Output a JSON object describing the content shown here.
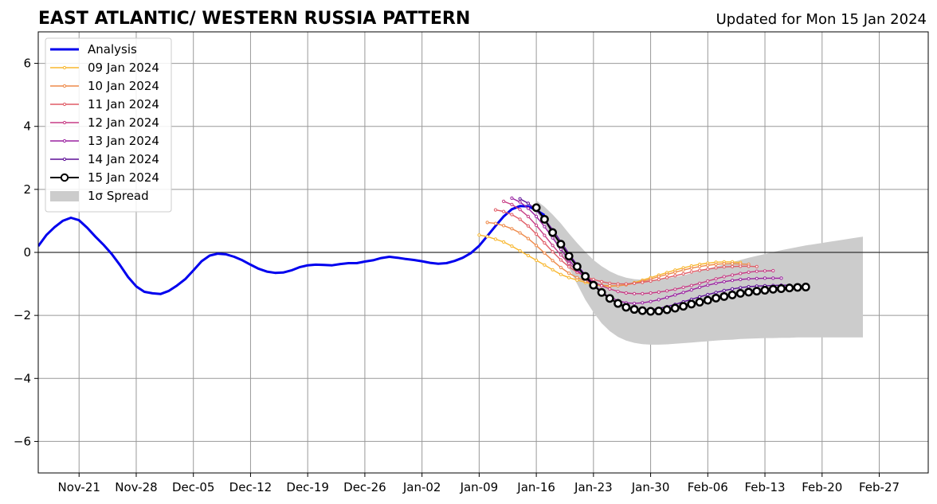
{
  "chart_data": {
    "type": "line",
    "title": "EAST ATLANTIC/ WESTERN RUSSIA PATTERN",
    "subtitle": "Updated for Mon 15 Jan 2024",
    "x_ticks": [
      "Nov-21",
      "Nov-28",
      "Dec-05",
      "Dec-12",
      "Dec-19",
      "Dec-26",
      "Jan-02",
      "Jan-09",
      "Jan-16",
      "Jan-23",
      "Jan-30",
      "Feb-06",
      "Feb-13",
      "Feb-20",
      "Feb-27"
    ],
    "xlim": [
      "2023-11-16",
      "2024-03-04"
    ],
    "ylim": [
      -7,
      7
    ],
    "y_ticks": [
      -6,
      -4,
      -2,
      0,
      2,
      4,
      6
    ],
    "y_tick_labels": [
      "−6",
      "−4",
      "−2",
      "0",
      "2",
      "4",
      "6"
    ],
    "grid": true,
    "legend_position": "top-left",
    "analysis": {
      "name": "Analysis",
      "color": "#0000ee",
      "start_date": "2023-11-16",
      "values": [
        0.2,
        0.55,
        0.8,
        1.0,
        1.1,
        1.02,
        0.78,
        0.5,
        0.24,
        -0.05,
        -0.4,
        -0.78,
        -1.08,
        -1.25,
        -1.3,
        -1.32,
        -1.22,
        -1.05,
        -0.85,
        -0.57,
        -0.28,
        -0.1,
        -0.04,
        -0.06,
        -0.14,
        -0.25,
        -0.39,
        -0.52,
        -0.61,
        -0.65,
        -0.64,
        -0.57,
        -0.47,
        -0.41,
        -0.39,
        -0.4,
        -0.41,
        -0.37,
        -0.34,
        -0.34,
        -0.29,
        -0.25,
        -0.18,
        -0.14,
        -0.17,
        -0.21,
        -0.24,
        -0.28,
        -0.33,
        -0.36,
        -0.34,
        -0.27,
        -0.17,
        -0.02,
        0.21,
        0.52,
        0.84,
        1.14,
        1.37,
        1.47,
        1.46,
        1.34,
        1.18
      ]
    },
    "forecasts": [
      {
        "name": "09 Jan 2024",
        "color": "#f8b72f",
        "start_date": "2024-01-09",
        "values": [
          0.55,
          0.5,
          0.42,
          0.33,
          0.2,
          0.05,
          -0.1,
          -0.25,
          -0.4,
          -0.55,
          -0.7,
          -0.8,
          -0.88,
          -0.95,
          -1.02,
          -1.06,
          -1.08,
          -1.06,
          -1.02,
          -0.96,
          -0.88,
          -0.8,
          -0.72,
          -0.64,
          -0.56,
          -0.49,
          -0.43,
          -0.38,
          -0.34,
          -0.31,
          -0.3,
          -0.3,
          -0.32
        ]
      },
      {
        "name": "10 Jan 2024",
        "color": "#ee8a4a",
        "start_date": "2024-01-10",
        "values": [
          0.95,
          0.92,
          0.85,
          0.75,
          0.62,
          0.44,
          0.22,
          -0.02,
          -0.26,
          -0.48,
          -0.66,
          -0.8,
          -0.91,
          -0.99,
          -1.04,
          -1.06,
          -1.06,
          -1.03,
          -0.98,
          -0.92,
          -0.85,
          -0.77,
          -0.7,
          -0.63,
          -0.56,
          -0.5,
          -0.45,
          -0.41,
          -0.38,
          -0.36,
          -0.36,
          -0.37,
          -0.38
        ]
      },
      {
        "name": "11 Jan 2024",
        "color": "#e05c66",
        "start_date": "2024-01-11",
        "values": [
          1.35,
          1.3,
          1.2,
          1.05,
          0.84,
          0.58,
          0.3,
          0.02,
          -0.24,
          -0.46,
          -0.63,
          -0.76,
          -0.86,
          -0.93,
          -0.98,
          -1.0,
          -1.0,
          -0.98,
          -0.95,
          -0.91,
          -0.86,
          -0.8,
          -0.74,
          -0.68,
          -0.62,
          -0.57,
          -0.53,
          -0.49,
          -0.46,
          -0.45,
          -0.44,
          -0.44,
          -0.45
        ]
      },
      {
        "name": "12 Jan 2024",
        "color": "#c73c85",
        "start_date": "2024-01-12",
        "values": [
          1.62,
          1.52,
          1.36,
          1.14,
          0.86,
          0.54,
          0.22,
          -0.08,
          -0.35,
          -0.58,
          -0.77,
          -0.93,
          -1.06,
          -1.16,
          -1.24,
          -1.29,
          -1.31,
          -1.31,
          -1.29,
          -1.26,
          -1.22,
          -1.17,
          -1.11,
          -1.05,
          -0.98,
          -0.91,
          -0.84,
          -0.77,
          -0.72,
          -0.67,
          -0.63,
          -0.6,
          -0.59,
          -0.58
        ]
      },
      {
        "name": "13 Jan 2024",
        "color": "#9a21a0",
        "start_date": "2024-01-13",
        "values": [
          1.72,
          1.6,
          1.4,
          1.14,
          0.82,
          0.46,
          0.1,
          -0.24,
          -0.55,
          -0.82,
          -1.06,
          -1.26,
          -1.42,
          -1.53,
          -1.6,
          -1.62,
          -1.6,
          -1.56,
          -1.5,
          -1.43,
          -1.35,
          -1.27,
          -1.19,
          -1.11,
          -1.04,
          -0.98,
          -0.93,
          -0.89,
          -0.86,
          -0.84,
          -0.83,
          -0.82,
          -0.82,
          -0.82
        ]
      },
      {
        "name": "14 Jan 2024",
        "color": "#5d0f96",
        "start_date": "2024-01-14",
        "values": [
          1.7,
          1.56,
          1.34,
          1.06,
          0.72,
          0.34,
          -0.04,
          -0.4,
          -0.72,
          -1.0,
          -1.25,
          -1.46,
          -1.62,
          -1.73,
          -1.8,
          -1.83,
          -1.82,
          -1.78,
          -1.72,
          -1.65,
          -1.57,
          -1.49,
          -1.41,
          -1.34,
          -1.27,
          -1.21,
          -1.16,
          -1.12,
          -1.09,
          -1.07,
          -1.06,
          -1.05,
          -1.04,
          -1.04
        ]
      },
      {
        "name": "15 Jan 2024",
        "color": "#000000",
        "start_date": "2024-01-16",
        "values": [
          1.42,
          1.05,
          0.63,
          0.26,
          -0.12,
          -0.45,
          -0.76,
          -1.04,
          -1.27,
          -1.46,
          -1.62,
          -1.74,
          -1.81,
          -1.85,
          -1.87,
          -1.86,
          -1.82,
          -1.77,
          -1.71,
          -1.64,
          -1.58,
          -1.52,
          -1.45,
          -1.4,
          -1.35,
          -1.3,
          -1.26,
          -1.23,
          -1.2,
          -1.17,
          -1.15,
          -1.13,
          -1.11,
          -1.1
        ]
      }
    ],
    "spread": {
      "name": "1σ Spread",
      "color": "#cccccc",
      "start_date": "2024-01-16",
      "upper": [
        1.65,
        1.45,
        1.2,
        0.92,
        0.6,
        0.3,
        0.02,
        -0.24,
        -0.44,
        -0.6,
        -0.72,
        -0.8,
        -0.85,
        -0.87,
        -0.88,
        -0.86,
        -0.83,
        -0.78,
        -0.73,
        -0.66,
        -0.59,
        -0.52,
        -0.45,
        -0.38,
        -0.31,
        -0.24,
        -0.17,
        -0.11,
        -0.05,
        0.01,
        0.07,
        0.12,
        0.17,
        0.22,
        0.26,
        0.3,
        0.34,
        0.38,
        0.42,
        0.46,
        0.5
      ],
      "lower": [
        1.3,
        0.9,
        0.45,
        0.0,
        -0.5,
        -1.0,
        -1.5,
        -1.9,
        -2.25,
        -2.5,
        -2.68,
        -2.8,
        -2.87,
        -2.91,
        -2.93,
        -2.93,
        -2.92,
        -2.9,
        -2.88,
        -2.86,
        -2.84,
        -2.82,
        -2.8,
        -2.78,
        -2.77,
        -2.75,
        -2.74,
        -2.73,
        -2.72,
        -2.72,
        -2.71,
        -2.71,
        -2.7,
        -2.7,
        -2.7,
        -2.7,
        -2.7,
        -2.7,
        -2.7,
        -2.7,
        -2.7
      ]
    }
  }
}
